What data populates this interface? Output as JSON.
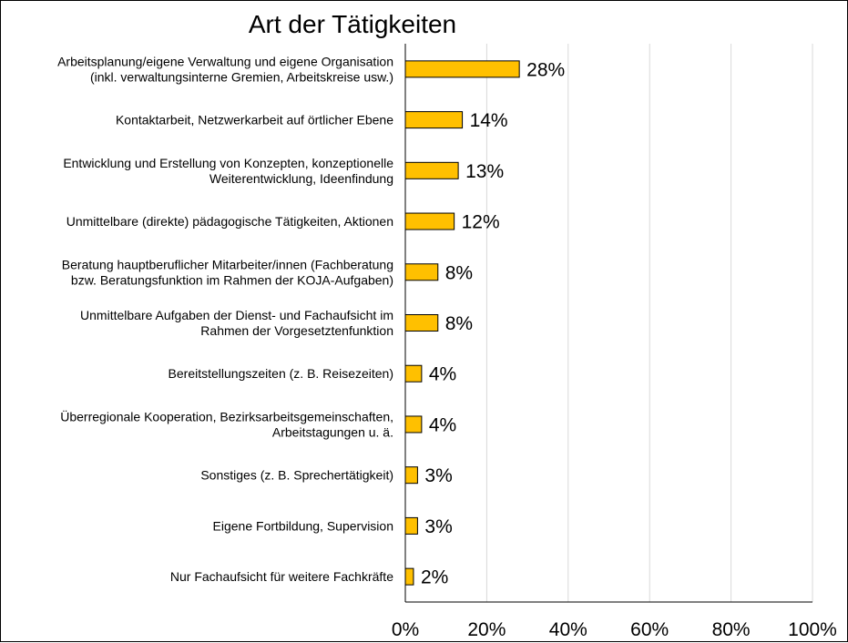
{
  "chart_data": {
    "type": "bar",
    "orientation": "horizontal",
    "title": "Art der Tätigkeiten",
    "categories": [
      [
        "Arbeitsplanung/eigene Verwaltung und eigene Organisation",
        "(inkl. verwaltungsinterne Gremien, Arbeitskreise usw.)"
      ],
      [
        "Kontaktarbeit, Netzwerkarbeit auf örtlicher Ebene"
      ],
      [
        "Entwicklung und Erstellung von Konzepten, konzeptionelle",
        "Weiterentwicklung, Ideenfindung"
      ],
      [
        "Unmittelbare (direkte) pädagogische Tätigkeiten, Aktionen"
      ],
      [
        "Beratung hauptberuflicher Mitarbeiter/innen (Fachberatung",
        "bzw. Beratungsfunktion im Rahmen der KOJA-Aufgaben)"
      ],
      [
        "Unmittelbare Aufgaben der Dienst- und Fachaufsicht im",
        "Rahmen der Vorgesetztenfunktion"
      ],
      [
        "Bereitstellungszeiten (z. B. Reisezeiten)"
      ],
      [
        "Überregionale Kooperation, Bezirksarbeitsgemeinschaften,",
        "Arbeitstagungen u. ä."
      ],
      [
        "Sonstiges (z. B. Sprechertätigkeit)"
      ],
      [
        "Eigene Fortbildung, Supervision"
      ],
      [
        "Nur Fachaufsicht für weitere Fachkräfte"
      ]
    ],
    "values": [
      28,
      14,
      13,
      12,
      8,
      8,
      4,
      4,
      3,
      3,
      2
    ],
    "data_labels": [
      "28%",
      "14%",
      "13%",
      "12%",
      "8%",
      "8%",
      "4%",
      "4%",
      "3%",
      "3%",
      "2%"
    ],
    "x_ticks": [
      "0%",
      "20%",
      "40%",
      "60%",
      "80%",
      "100%"
    ],
    "xlim": [
      0,
      100
    ],
    "xlabel": "",
    "ylabel": "",
    "grid": "vertical",
    "legend": "none",
    "colors": {
      "bar_fill": "#FFC000",
      "bar_stroke": "#000000",
      "grid": "#d9d9d9",
      "axis": "#000000"
    }
  }
}
